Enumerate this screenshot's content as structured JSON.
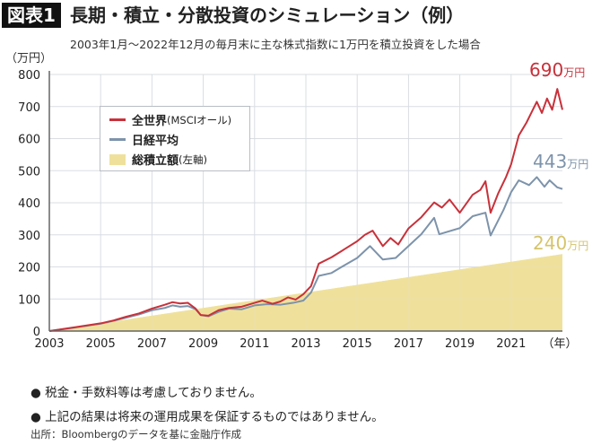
{
  "header": {
    "badge": "図表1",
    "title": "長期・積立・分散投資のシミュレーション（例）",
    "subtitle": "2003年1月～2022年12月の毎月末に主な株式指数に1万円を積立投資をした場合"
  },
  "notes": [
    "● 税金・手数料等は考慮しておりません。",
    "● 上記の結果は将来の運用成果を保証するものではありません。"
  ],
  "source": "出所：Bloombergのデータを基に金融庁作成",
  "chart_data": {
    "type": "line",
    "title": "長期・積立・分散投資のシミュレーション（例）",
    "ylabel": "（万円）",
    "xlabel": "（年）",
    "ylim": [
      0,
      800
    ],
    "xlim": [
      2003,
      2023
    ],
    "yticks": [
      "0",
      "100",
      "200",
      "300",
      "400",
      "500",
      "600",
      "700",
      "800"
    ],
    "xticks": [
      "2003",
      "2005",
      "2007",
      "2009",
      "2011",
      "2013",
      "2015",
      "2017",
      "2019",
      "2021"
    ],
    "grid": true,
    "legend_position": "top-left",
    "colors": {
      "world": "#c8313a",
      "nikkei": "#7d93ab",
      "total": "#efe19c",
      "total_label": "#d6c46a"
    },
    "series": [
      {
        "name": "全世界",
        "name_note": "(MSCIオール)",
        "end_value": "690",
        "unit": "万円",
        "points": [
          [
            2003,
            0
          ],
          [
            2004,
            12
          ],
          [
            2005,
            24
          ],
          [
            2005.5,
            33
          ],
          [
            2006,
            45
          ],
          [
            2006.5,
            55
          ],
          [
            2007,
            70
          ],
          [
            2007.5,
            82
          ],
          [
            2007.8,
            90
          ],
          [
            2008.1,
            86
          ],
          [
            2008.4,
            88
          ],
          [
            2008.7,
            70
          ],
          [
            2008.9,
            50
          ],
          [
            2009.2,
            48
          ],
          [
            2009.6,
            65
          ],
          [
            2010,
            72
          ],
          [
            2010.5,
            76
          ],
          [
            2011,
            88
          ],
          [
            2011.3,
            95
          ],
          [
            2011.7,
            85
          ],
          [
            2012,
            92
          ],
          [
            2012.3,
            105
          ],
          [
            2012.6,
            98
          ],
          [
            2012.9,
            115
          ],
          [
            2013.2,
            140
          ],
          [
            2013.5,
            210
          ],
          [
            2014,
            230
          ],
          [
            2014.5,
            255
          ],
          [
            2015,
            280
          ],
          [
            2015.3,
            300
          ],
          [
            2015.6,
            313
          ],
          [
            2016,
            265
          ],
          [
            2016.3,
            290
          ],
          [
            2016.6,
            270
          ],
          [
            2017,
            320
          ],
          [
            2017.5,
            355
          ],
          [
            2018,
            401
          ],
          [
            2018.3,
            385
          ],
          [
            2018.6,
            410
          ],
          [
            2019,
            369
          ],
          [
            2019.5,
            425
          ],
          [
            2019.8,
            440
          ],
          [
            2020,
            467
          ],
          [
            2020.2,
            369
          ],
          [
            2020.5,
            430
          ],
          [
            2020.8,
            480
          ],
          [
            2021,
            520
          ],
          [
            2021.3,
            610
          ],
          [
            2021.6,
            650
          ],
          [
            2022,
            715
          ],
          [
            2022.2,
            680
          ],
          [
            2022.4,
            725
          ],
          [
            2022.6,
            690
          ],
          [
            2022.8,
            755
          ],
          [
            2023,
            690
          ]
        ]
      },
      {
        "name": "日経平均",
        "end_value": "443",
        "unit": "万円",
        "points": [
          [
            2003,
            0
          ],
          [
            2004,
            11
          ],
          [
            2005,
            23
          ],
          [
            2005.5,
            32
          ],
          [
            2006,
            42
          ],
          [
            2006.5,
            52
          ],
          [
            2007,
            65
          ],
          [
            2007.5,
            72
          ],
          [
            2007.8,
            80
          ],
          [
            2008.1,
            76
          ],
          [
            2008.4,
            78
          ],
          [
            2008.7,
            68
          ],
          [
            2008.9,
            50
          ],
          [
            2009.2,
            46
          ],
          [
            2009.6,
            60
          ],
          [
            2010,
            70
          ],
          [
            2010.5,
            68
          ],
          [
            2011,
            80
          ],
          [
            2011.5,
            84
          ],
          [
            2012,
            82
          ],
          [
            2012.5,
            88
          ],
          [
            2012.9,
            95
          ],
          [
            2013.2,
            120
          ],
          [
            2013.5,
            172
          ],
          [
            2014,
            181
          ],
          [
            2014.5,
            205
          ],
          [
            2015,
            228
          ],
          [
            2015.5,
            265
          ],
          [
            2016,
            223
          ],
          [
            2016.5,
            228
          ],
          [
            2017,
            265
          ],
          [
            2017.5,
            302
          ],
          [
            2018,
            353
          ],
          [
            2018.2,
            302
          ],
          [
            2019,
            321
          ],
          [
            2019.5,
            358
          ],
          [
            2020,
            369
          ],
          [
            2020.2,
            298
          ],
          [
            2020.7,
            377
          ],
          [
            2021,
            433
          ],
          [
            2021.3,
            470
          ],
          [
            2021.7,
            455
          ],
          [
            2022,
            480
          ],
          [
            2022.3,
            450
          ],
          [
            2022.5,
            470
          ],
          [
            2022.8,
            448
          ],
          [
            2023,
            443
          ]
        ]
      },
      {
        "name": "総積立額",
        "name_note": "(左軸)",
        "end_value": "240",
        "unit": "万円",
        "type": "area",
        "points": [
          [
            2003,
            0
          ],
          [
            2023,
            240
          ]
        ]
      }
    ]
  }
}
